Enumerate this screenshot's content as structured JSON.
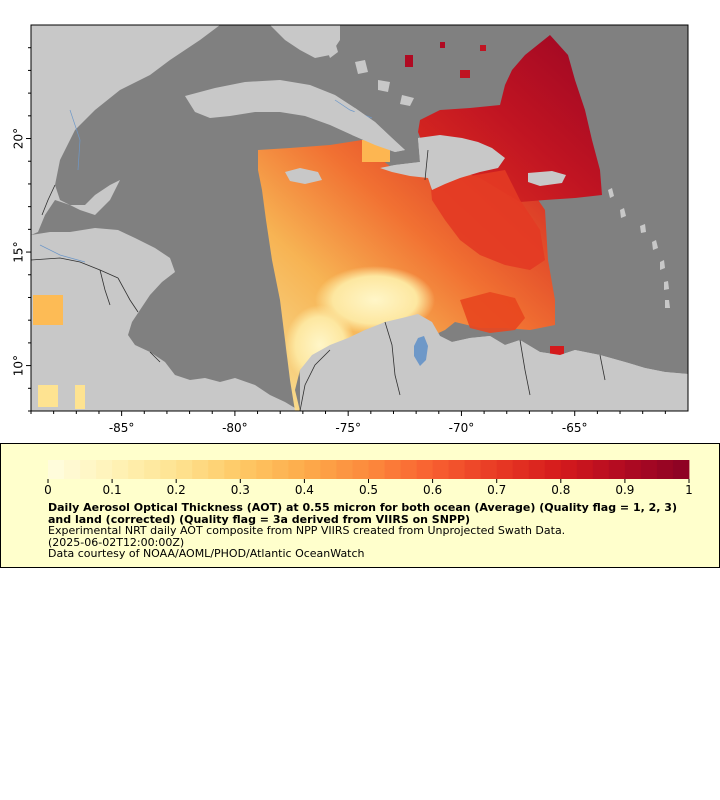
{
  "map": {
    "lon_range": [
      -89.0,
      -60.0
    ],
    "lat_range": [
      8.0,
      25.0
    ],
    "lon_ticks": [
      "-85°",
      "-80°",
      "-75°",
      "-70°",
      "-65°"
    ],
    "lat_ticks": [
      "10°",
      "15°",
      "20°"
    ],
    "ocean_color": "#808080",
    "land_color": "#c8c8c8",
    "river_color": "#6e98c8",
    "border_color": "#303030"
  },
  "colorbar": {
    "labels": [
      "0",
      "0.1",
      "0.2",
      "0.3",
      "0.4",
      "0.5",
      "0.6",
      "0.7",
      "0.8",
      "0.9",
      "1"
    ],
    "range": [
      0,
      1
    ],
    "colors": [
      "#fffde0",
      "#fff3b8",
      "#fee391",
      "#fec965",
      "#fdab4b",
      "#fc8a3c",
      "#f86030",
      "#e83a24",
      "#d41a1c",
      "#b00a22",
      "#8a0224"
    ]
  },
  "legend": {
    "title": "Daily Aerosol Optical Thickness (AOT) at 0.55 micron for both ocean (Average) (Quality flag = 1, 2, 3) and land (corrected) (Quality flag = 3a derived from VIIRS on SNPP)",
    "line1": "Experimental NRT daily AOT composite from NPP VIIRS created from Unprojected Swath Data.",
    "line2": "(2025-06-02T12:00:00Z)",
    "line3": "Data courtesy of NOAA/AOML/PHOD/Atlantic OceanWatch"
  }
}
